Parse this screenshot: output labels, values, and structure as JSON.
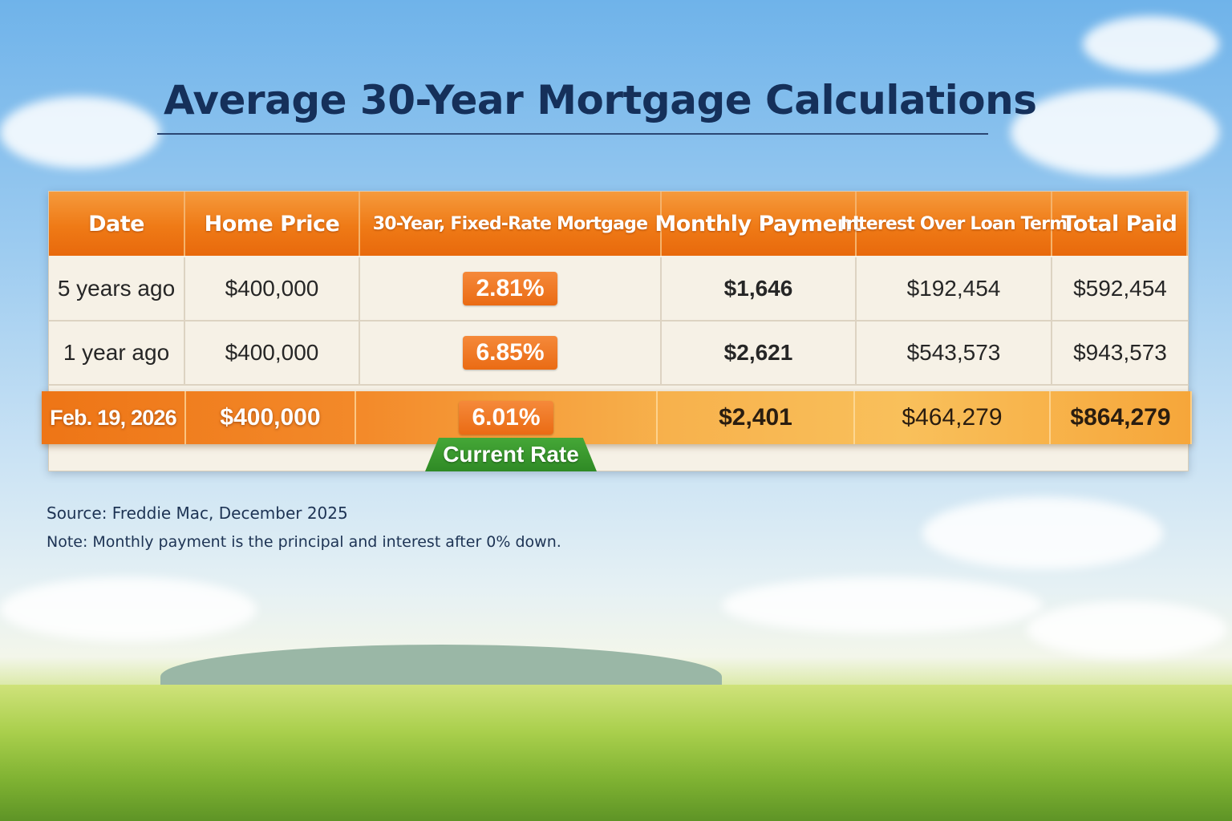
{
  "title": "Average 30-Year Mortgage Calculations",
  "table": {
    "headers": [
      "Date",
      "Home Price",
      "30-Year, Fixed-Rate Mortgage",
      "Monthly Payment",
      "Interest Over Loan Term",
      "Total Paid"
    ],
    "rows": [
      {
        "date": "5 years ago",
        "home_price": "$400,000",
        "rate": "2.81%",
        "monthly_payment": "$1,646",
        "interest": "$192,454",
        "total_paid": "$592,454"
      },
      {
        "date": "1 year ago",
        "home_price": "$400,000",
        "rate": "6.85%",
        "monthly_payment": "$2,621",
        "interest": "$543,573",
        "total_paid": "$943,573"
      }
    ],
    "current": {
      "date": "Feb. 19, 2026",
      "home_price": "$400,000",
      "rate": "6.01%",
      "monthly_payment": "$2,401",
      "interest": "$464,279",
      "total_paid": "$864,279",
      "badge": "Current Rate"
    }
  },
  "source": "Source: Freddie Mac, December 2025",
  "note": "Note: Monthly payment is the principal and interest after 0% down.",
  "colors": {
    "header": "#ef7a16",
    "badge_green": "#3a9a2e",
    "title": "#15305a"
  }
}
